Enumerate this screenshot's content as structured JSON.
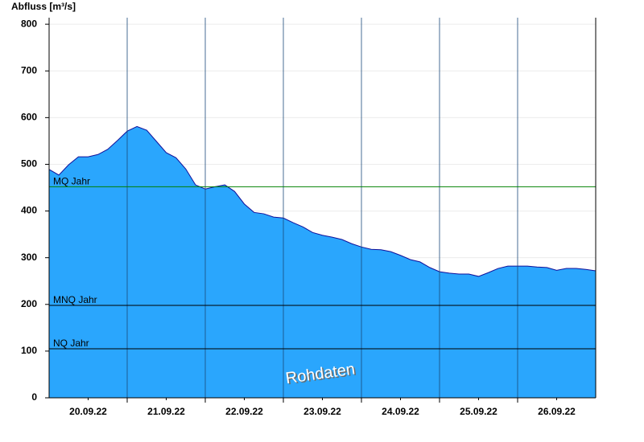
{
  "chart_data": {
    "type": "area",
    "title": "Abfluss [m³/s]",
    "annotation": "Rohdaten",
    "x": [
      0,
      3,
      6,
      9,
      12,
      15,
      18,
      21,
      24,
      27,
      30,
      33,
      36,
      39,
      42,
      45,
      48,
      51,
      54,
      57,
      60,
      63,
      66,
      69,
      72,
      75,
      78,
      81,
      84,
      87,
      90,
      93,
      96,
      99,
      102,
      105,
      108,
      111,
      114,
      117,
      120,
      123,
      126,
      129,
      132,
      135,
      138,
      141,
      144,
      147,
      150,
      153,
      156,
      159,
      162,
      165,
      168
    ],
    "values": [
      489,
      477,
      499,
      516,
      516,
      521,
      532,
      551,
      571,
      581,
      573,
      549,
      525,
      514,
      490,
      456,
      447,
      452,
      456,
      442,
      415,
      397,
      394,
      387,
      385,
      375,
      366,
      354,
      348,
      344,
      339,
      330,
      323,
      318,
      317,
      313,
      305,
      296,
      291,
      279,
      270,
      267,
      265,
      265,
      260,
      268,
      277,
      282,
      282,
      282,
      280,
      279,
      273,
      277,
      277,
      275,
      272
    ],
    "color": "#2aa6fd",
    "line_color": "#10109a",
    "xlim": [
      0,
      168
    ],
    "xticks": [
      {
        "value": 12,
        "label": "20.09.22"
      },
      {
        "value": 36,
        "label": "21.09.22"
      },
      {
        "value": 60,
        "label": "22.09.22"
      },
      {
        "value": 84,
        "label": "23.09.22"
      },
      {
        "value": 108,
        "label": "24.09.22"
      },
      {
        "value": 132,
        "label": "25.09.22"
      },
      {
        "value": 156,
        "label": "26.09.22"
      }
    ],
    "xgrid": [
      24,
      48,
      72,
      96,
      120,
      144
    ],
    "ylim": [
      0,
      814
    ],
    "yticks": [
      0,
      100,
      200,
      300,
      400,
      500,
      600,
      700,
      800
    ],
    "grid": true,
    "reference_lines": [
      {
        "label": "MQ Jahr",
        "value": 452,
        "color": "#008000"
      },
      {
        "label": "MNQ Jahr",
        "value": 198,
        "color": "#000000"
      },
      {
        "label": "NQ Jahr",
        "value": 105,
        "color": "#000000"
      }
    ]
  }
}
